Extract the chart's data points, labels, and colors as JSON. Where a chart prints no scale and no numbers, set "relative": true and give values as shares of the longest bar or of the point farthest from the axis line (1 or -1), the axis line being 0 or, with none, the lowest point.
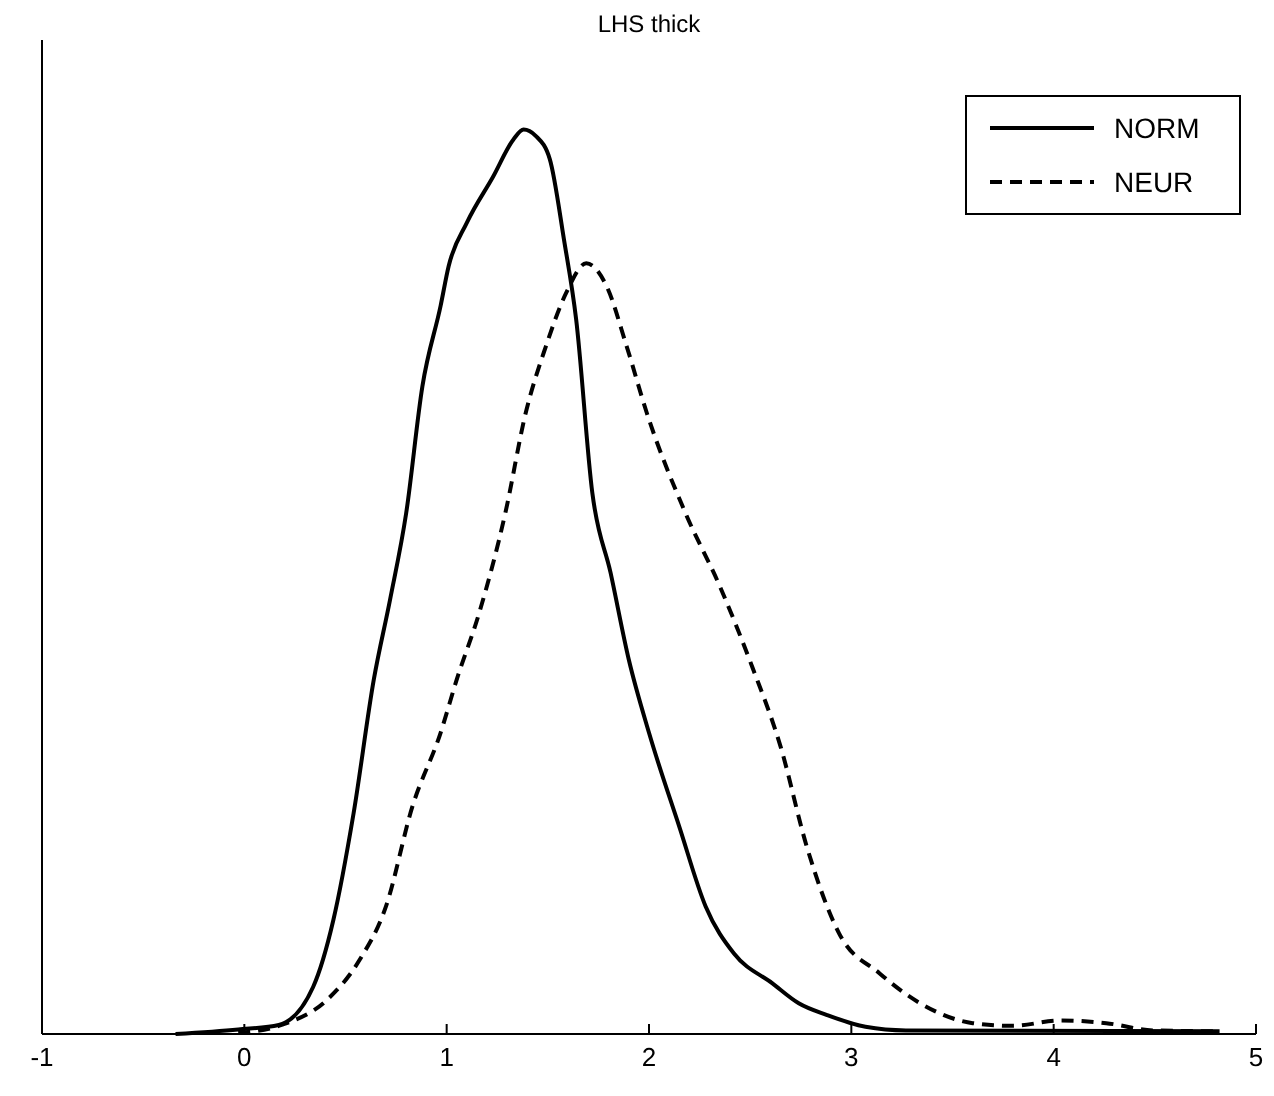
{
  "chart_data": {
    "type": "line",
    "title": "LHS thick",
    "relative": true,
    "xlim": [
      -1,
      5
    ],
    "xticks": [
      -1,
      0,
      1,
      2,
      3,
      4,
      5
    ],
    "legend": "top right",
    "grid": false,
    "series": [
      {
        "name": "NORM",
        "color": "#000000",
        "line_style": "solid",
        "x": [
          -0.34,
          -0.03,
          0.17,
          0.34,
          0.44,
          0.54,
          0.64,
          0.72,
          0.8,
          0.88,
          0.97,
          1.01,
          1.1,
          1.23,
          1.33,
          1.38,
          1.44,
          1.51,
          1.58,
          1.64,
          1.72,
          1.81,
          1.9,
          2.0,
          2.15,
          2.28,
          2.42,
          2.61,
          2.74,
          2.88,
          3.07,
          3.27,
          4.82
        ],
        "values": [
          0,
          0.005,
          0.01,
          0.052,
          0.126,
          0.244,
          0.392,
          0.48,
          0.576,
          0.716,
          0.805,
          0.849,
          0.897,
          0.948,
          0.989,
          1,
          0.993,
          0.967,
          0.878,
          0.79,
          0.598,
          0.51,
          0.414,
          0.333,
          0.229,
          0.141,
          0.089,
          0.056,
          0.034,
          0.021,
          0.008,
          0.004,
          0.003
        ]
      },
      {
        "name": "NEUR",
        "color": "#000000",
        "line_style": "dashed",
        "x": [
          -0.03,
          0.17,
          0.41,
          0.57,
          0.7,
          0.83,
          0.97,
          1.05,
          1.16,
          1.29,
          1.39,
          1.49,
          1.59,
          1.69,
          1.79,
          1.89,
          1.99,
          2.18,
          2.35,
          2.51,
          2.65,
          2.78,
          2.94,
          3.14,
          3.34,
          3.6,
          3.8,
          4.03,
          4.26,
          4.49,
          4.82
        ],
        "values": [
          0.001,
          0.009,
          0.038,
          0.082,
          0.141,
          0.251,
          0.333,
          0.392,
          0.465,
          0.576,
          0.686,
          0.76,
          0.819,
          0.852,
          0.827,
          0.76,
          0.686,
          0.576,
          0.495,
          0.406,
          0.318,
          0.207,
          0.111,
          0.067,
          0.034,
          0.012,
          0.009,
          0.015,
          0.012,
          0.004,
          0.003
        ]
      }
    ]
  }
}
